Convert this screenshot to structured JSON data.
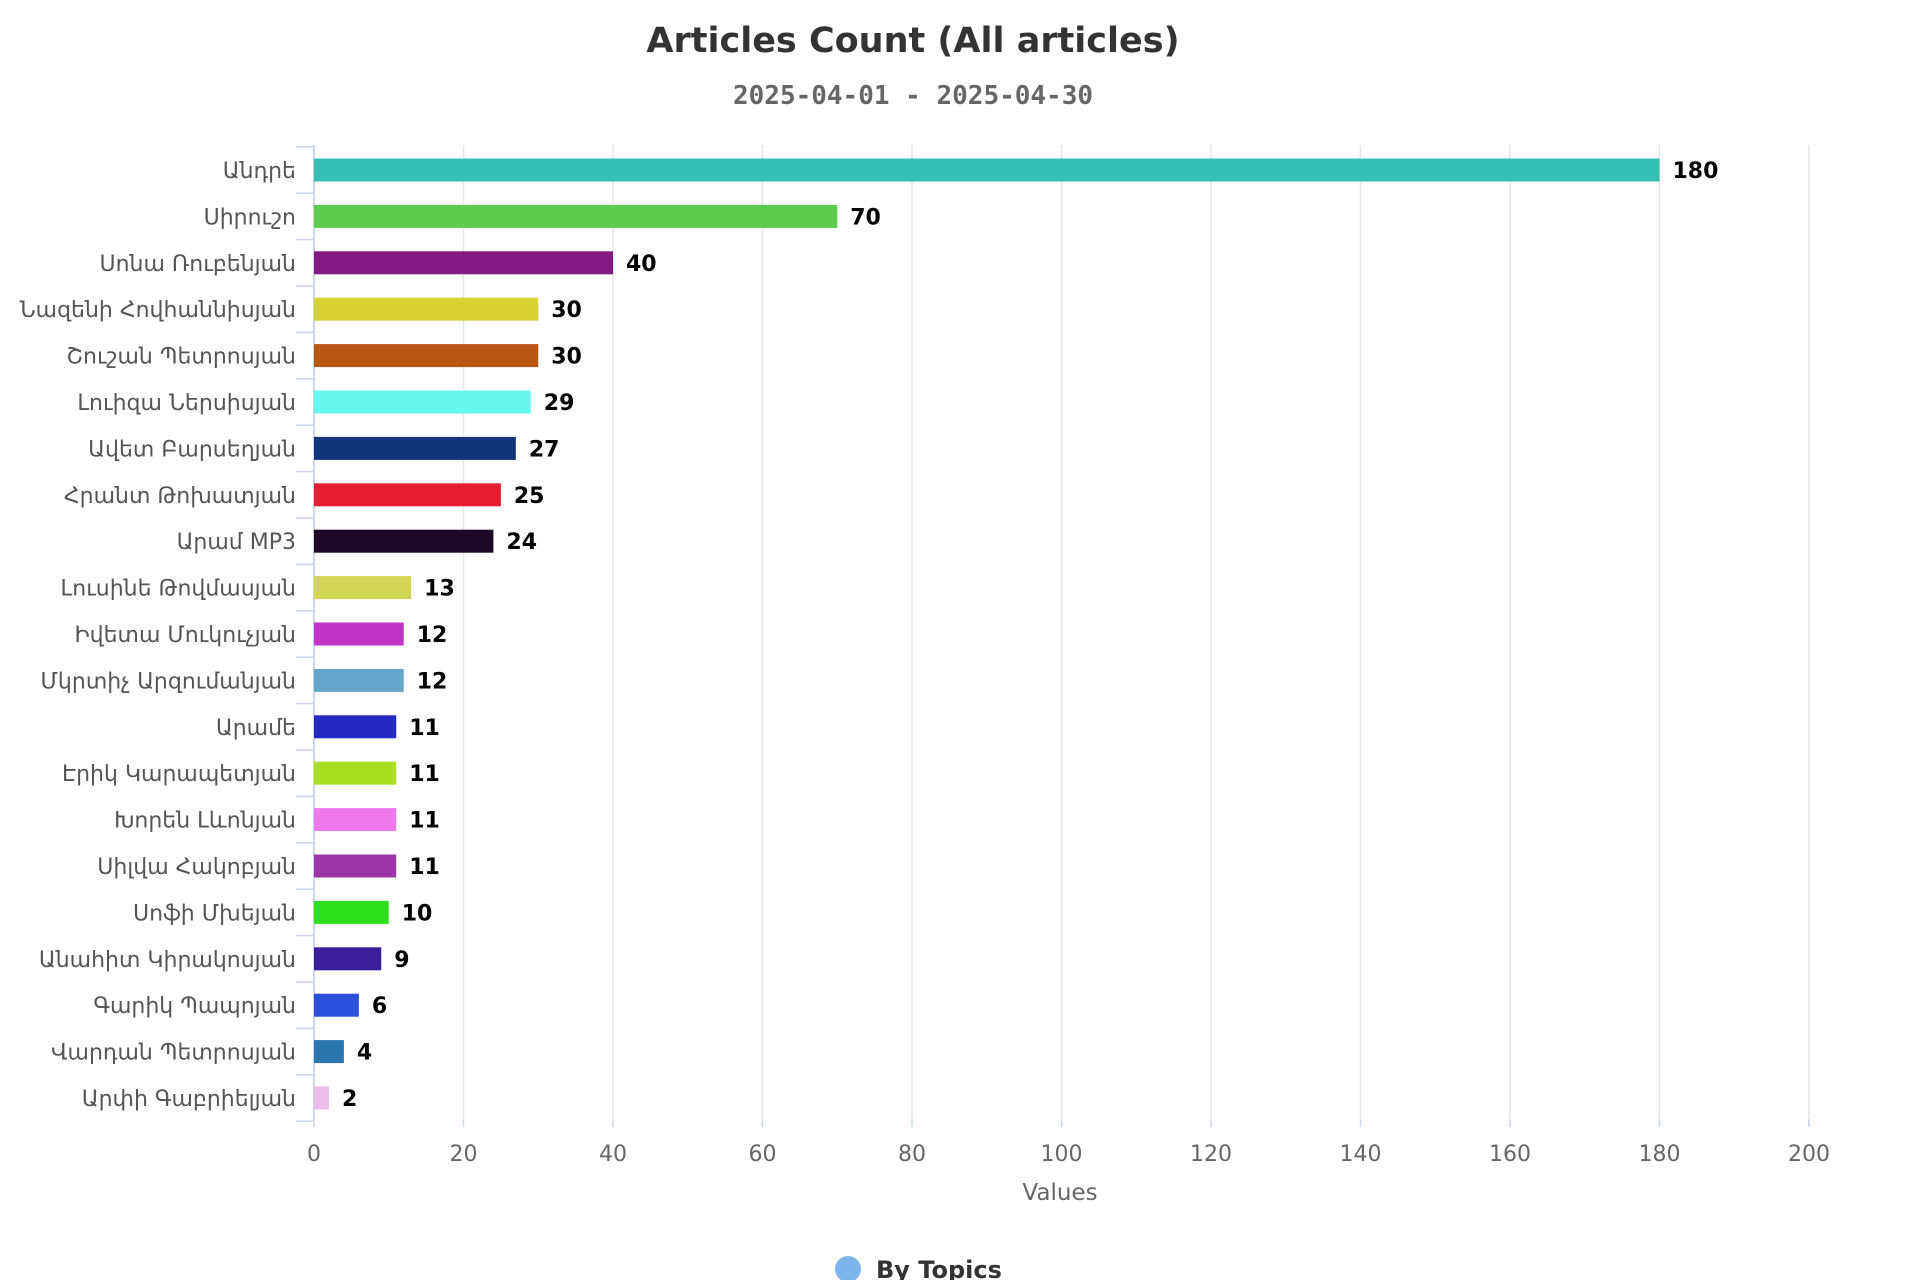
{
  "chart_data": {
    "type": "bar",
    "orientation": "horizontal",
    "title": "Articles Count (All articles)",
    "subtitle": "2025-04-01 - 2025-04-30",
    "xlabel": "Values",
    "ylabel": "",
    "xlim": [
      0,
      200
    ],
    "xticks": [
      0,
      20,
      40,
      60,
      80,
      100,
      120,
      140,
      160,
      180,
      200
    ],
    "grid": true,
    "legend": {
      "position": "bottom-center",
      "items": [
        "By Topics"
      ]
    },
    "legend_color": "#7cb5ec",
    "categories": [
      "Անդրե",
      "Սիրուշո",
      "Սոնա Ռուբենյան",
      "Նազենի Հովհաննիսյան",
      "Շուշան Պետրոսյան",
      "Լուիզա Ներսիսյան",
      "Ավետ Բարսեղյան",
      "Հրանտ Թոխատյան",
      "Արամ MP3",
      "Լուսինե Թովմասյան",
      "Իվետա Մուկուչյան",
      "Մկրտիչ Արզումանյան",
      "Արամե",
      "Էրիկ Կարապետյան",
      "Խորեն Լևոնյան",
      "Սիլվա Հակոբյան",
      "Սոֆի Մխեյան",
      "Անահիտ Կիրակոսյան",
      "Գարիկ Պապոյան",
      "Վարդան Պետրոսյան",
      "Արփի Գաբրիելյան"
    ],
    "series": [
      {
        "name": "By Topics",
        "values": [
          180,
          70,
          40,
          30,
          30,
          29,
          27,
          25,
          24,
          13,
          12,
          12,
          11,
          11,
          11,
          11,
          10,
          9,
          6,
          4,
          2
        ],
        "colors": [
          "#36bfb2",
          "#5ccc4f",
          "#831b85",
          "#d6d233",
          "#b85616",
          "#66f7ee",
          "#12357a",
          "#e81c30",
          "#1e0828",
          "#d3d654",
          "#c033c6",
          "#64a5cc",
          "#2628c4",
          "#a8e01e",
          "#ef78ec",
          "#9b36a8",
          "#2ce01c",
          "#3a1e9a",
          "#2b4fdc",
          "#2b77ad",
          "#edbce9"
        ]
      }
    ]
  }
}
